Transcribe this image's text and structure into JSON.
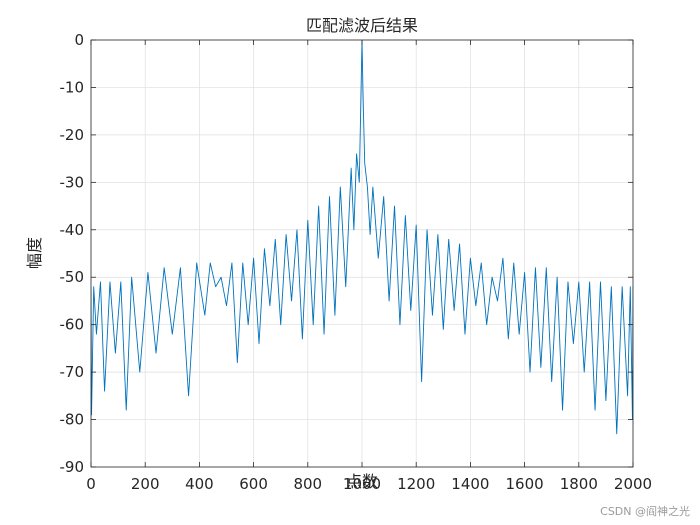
{
  "chart_data": {
    "type": "line",
    "title": "匹配滤波后结果",
    "xlabel": "点数",
    "ylabel": "幅度",
    "xlim": [
      0,
      2000
    ],
    "ylim": [
      -90,
      0
    ],
    "xticks": [
      0,
      200,
      400,
      600,
      800,
      1000,
      1200,
      1400,
      1600,
      1800,
      2000
    ],
    "yticks": [
      0,
      -10,
      -20,
      -30,
      -40,
      -50,
      -60,
      -70,
      -80,
      -90
    ],
    "grid": true,
    "line_color": "#0072BD",
    "series": [
      {
        "x": [
          0,
          2,
          10,
          20,
          35,
          50,
          70,
          90,
          110,
          130,
          150,
          180,
          210,
          240,
          270,
          300,
          330,
          360,
          390,
          420,
          440,
          460,
          480,
          500,
          520,
          540,
          560,
          580,
          600,
          620,
          640,
          660,
          680,
          700,
          720,
          740,
          760,
          780,
          800,
          820,
          840,
          860,
          880,
          900,
          920,
          940,
          960,
          970,
          980,
          990,
          996,
          1000,
          1004,
          1010,
          1020,
          1030,
          1040,
          1060,
          1080,
          1100,
          1120,
          1140,
          1160,
          1180,
          1200,
          1220,
          1240,
          1260,
          1280,
          1300,
          1320,
          1340,
          1360,
          1380,
          1400,
          1420,
          1440,
          1460,
          1480,
          1500,
          1520,
          1540,
          1560,
          1580,
          1600,
          1620,
          1640,
          1660,
          1680,
          1700,
          1720,
          1740,
          1760,
          1780,
          1800,
          1820,
          1840,
          1860,
          1880,
          1900,
          1920,
          1940,
          1960,
          1980,
          1990,
          1998,
          2000
        ],
        "y": [
          -52,
          -79,
          -52,
          -62,
          -51,
          -74,
          -51,
          -66,
          -51,
          -78,
          -50,
          -70,
          -49,
          -66,
          -48,
          -62,
          -48,
          -75,
          -47,
          -58,
          -47,
          -52,
          -50,
          -56,
          -47,
          -68,
          -47,
          -60,
          -46,
          -64,
          -44,
          -56,
          -42,
          -60,
          -41,
          -55,
          -40,
          -63,
          -38,
          -60,
          -35,
          -62,
          -33,
          -58,
          -31,
          -52,
          -27,
          -40,
          -24,
          -30,
          -12,
          0,
          -12,
          -26,
          -31,
          -41,
          -31,
          -46,
          -33,
          -55,
          -35,
          -60,
          -37,
          -57,
          -39,
          -72,
          -40,
          -58,
          -41,
          -61,
          -42,
          -57,
          -43,
          -62,
          -46,
          -56,
          -47,
          -60,
          -50,
          -55,
          -46,
          -63,
          -47,
          -62,
          -49,
          -70,
          -48,
          -69,
          -48,
          -72,
          -50,
          -78,
          -51,
          -64,
          -51,
          -70,
          -51,
          -78,
          -51,
          -76,
          -52,
          -83,
          -52,
          -75,
          -52,
          -80,
          -52
        ]
      }
    ]
  },
  "watermark": "CSDN @阎神之光"
}
